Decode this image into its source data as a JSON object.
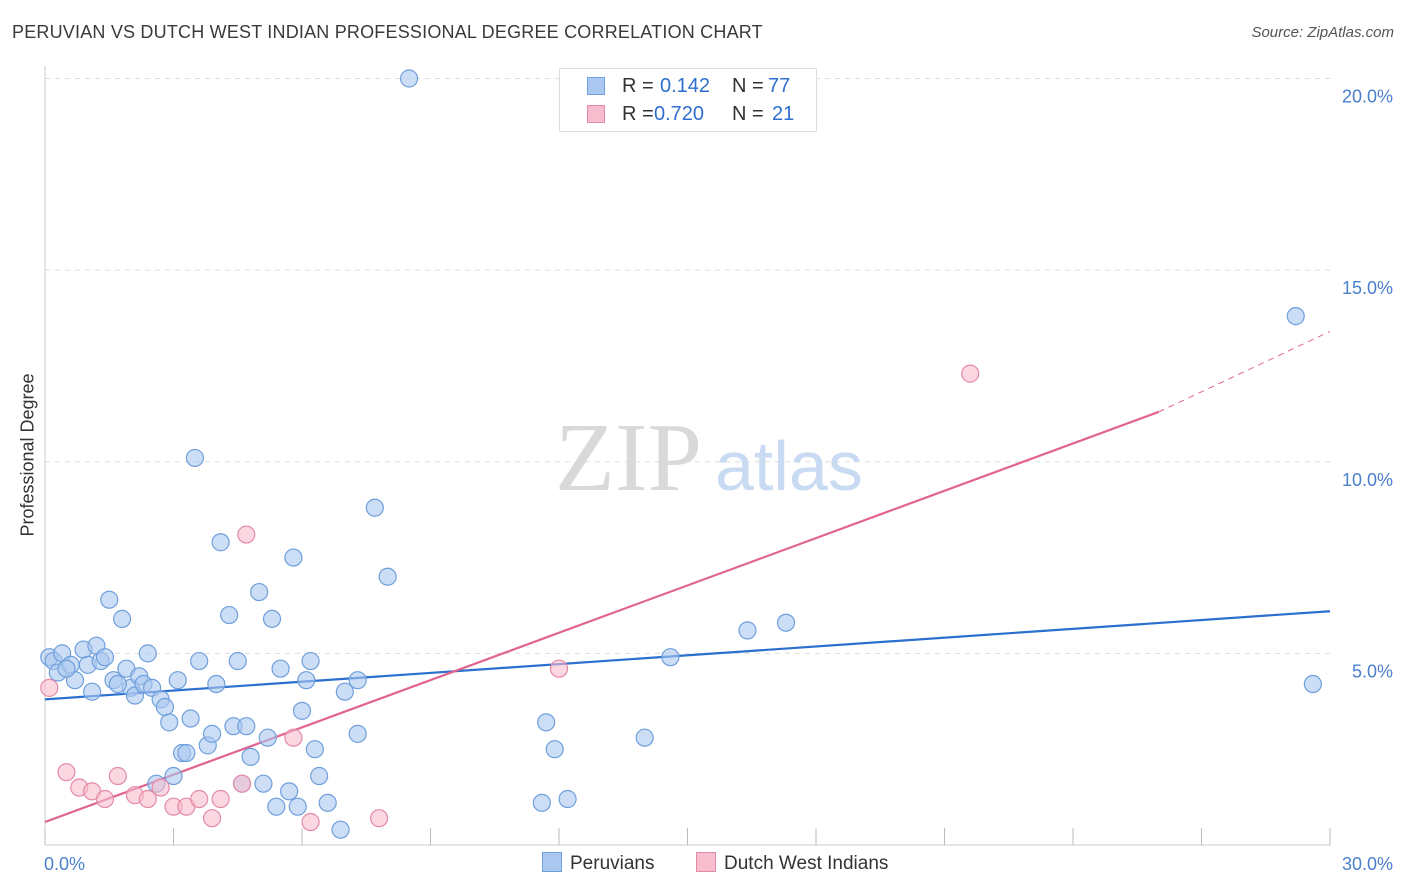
{
  "title": "PERUVIAN VS DUTCH WEST INDIAN PROFESSIONAL DEGREE CORRELATION CHART",
  "source": "Source: ZipAtlas.com",
  "watermark": {
    "zip": "ZIP",
    "atlas": "atlas"
  },
  "legend": {
    "r_label": "R =",
    "n_label": "N =",
    "rows": [
      {
        "r": "0.142",
        "n": "77"
      },
      {
        "r": "0.720",
        "n": "21"
      }
    ]
  },
  "colors": {
    "peruvians_fill": "#aac8f0",
    "peruvians_stroke": "#6f9fdc",
    "peruvians_line": "#2b6fcf",
    "dutch_fill": "#f7bccd",
    "dutch_stroke": "#e58aa6",
    "dutch_line": "#e0648f",
    "tick_text": "#4a7fcc",
    "grid": "#dddddd"
  },
  "chart_data": {
    "type": "scatter",
    "title": "PERUVIAN VS DUTCH WEST INDIAN PROFESSIONAL DEGREE CORRELATION CHART",
    "xlabel": "",
    "ylabel": "Professional Degree",
    "xlim": [
      0,
      30
    ],
    "ylim": [
      0,
      20
    ],
    "x_tick_labels": [
      "0.0%",
      "30.0%"
    ],
    "y_tick_labels": [
      "5.0%",
      "10.0%",
      "15.0%",
      "20.0%"
    ],
    "y_ticks": [
      5,
      10,
      15,
      20
    ],
    "grid": true,
    "legend_position": "top-center",
    "series": [
      {
        "name": "Peruvians",
        "r": 0.142,
        "n": 77,
        "trend": {
          "x0": 0,
          "y0": 3.8,
          "x1": 30,
          "y1": 6.1
        },
        "points": [
          [
            0.1,
            4.9
          ],
          [
            0.2,
            4.8
          ],
          [
            0.3,
            4.5
          ],
          [
            0.4,
            5.0
          ],
          [
            0.6,
            4.7
          ],
          [
            0.7,
            4.3
          ],
          [
            0.9,
            5.1
          ],
          [
            1.0,
            4.7
          ],
          [
            1.1,
            4.0
          ],
          [
            1.2,
            5.2
          ],
          [
            1.3,
            4.8
          ],
          [
            1.4,
            4.9
          ],
          [
            1.5,
            6.4
          ],
          [
            1.6,
            4.3
          ],
          [
            1.8,
            5.9
          ],
          [
            1.9,
            4.6
          ],
          [
            2.0,
            4.1
          ],
          [
            2.1,
            3.9
          ],
          [
            2.2,
            4.4
          ],
          [
            2.3,
            4.2
          ],
          [
            2.4,
            5.0
          ],
          [
            2.5,
            4.1
          ],
          [
            2.6,
            1.6
          ],
          [
            2.7,
            3.8
          ],
          [
            2.8,
            3.6
          ],
          [
            2.9,
            3.2
          ],
          [
            3.0,
            1.8
          ],
          [
            3.1,
            4.3
          ],
          [
            3.2,
            2.4
          ],
          [
            3.3,
            2.4
          ],
          [
            3.4,
            3.3
          ],
          [
            3.5,
            10.1
          ],
          [
            3.6,
            4.8
          ],
          [
            3.8,
            2.6
          ],
          [
            3.9,
            2.9
          ],
          [
            4.0,
            4.2
          ],
          [
            4.1,
            7.9
          ],
          [
            4.3,
            6.0
          ],
          [
            4.4,
            3.1
          ],
          [
            4.5,
            4.8
          ],
          [
            4.6,
            1.6
          ],
          [
            4.7,
            3.1
          ],
          [
            4.8,
            2.3
          ],
          [
            5.0,
            6.6
          ],
          [
            5.1,
            1.6
          ],
          [
            5.2,
            2.8
          ],
          [
            5.3,
            5.9
          ],
          [
            5.4,
            1.0
          ],
          [
            5.5,
            4.6
          ],
          [
            5.7,
            1.4
          ],
          [
            5.8,
            7.5
          ],
          [
            5.9,
            1.0
          ],
          [
            6.0,
            3.5
          ],
          [
            6.1,
            4.3
          ],
          [
            6.2,
            4.8
          ],
          [
            6.3,
            2.5
          ],
          [
            6.4,
            1.8
          ],
          [
            6.6,
            1.1
          ],
          [
            6.9,
            0.4
          ],
          [
            7.0,
            4.0
          ],
          [
            7.3,
            2.9
          ],
          [
            7.3,
            4.3
          ],
          [
            7.7,
            8.8
          ],
          [
            8.0,
            7.0
          ],
          [
            11.7,
            3.2
          ],
          [
            11.9,
            2.5
          ],
          [
            11.6,
            1.1
          ],
          [
            12.2,
            1.2
          ],
          [
            14.0,
            2.8
          ],
          [
            14.6,
            4.9
          ],
          [
            16.4,
            5.6
          ],
          [
            17.3,
            5.8
          ],
          [
            8.5,
            20.0
          ],
          [
            29.2,
            13.8
          ],
          [
            29.6,
            4.2
          ],
          [
            0.5,
            4.6
          ],
          [
            1.7,
            4.2
          ]
        ]
      },
      {
        "name": "Dutch West Indians",
        "r": 0.72,
        "n": 21,
        "trend": {
          "x0": 0,
          "y0": 0.6,
          "x1": 26.0,
          "y1": 11.3,
          "dash_to_x": 30,
          "dash_to_y": 13.4
        },
        "points": [
          [
            0.1,
            4.1
          ],
          [
            0.5,
            1.9
          ],
          [
            0.8,
            1.5
          ],
          [
            1.1,
            1.4
          ],
          [
            1.4,
            1.2
          ],
          [
            1.7,
            1.8
          ],
          [
            2.1,
            1.3
          ],
          [
            2.4,
            1.2
          ],
          [
            2.7,
            1.5
          ],
          [
            3.0,
            1.0
          ],
          [
            3.3,
            1.0
          ],
          [
            3.6,
            1.2
          ],
          [
            3.9,
            0.7
          ],
          [
            4.1,
            1.2
          ],
          [
            4.6,
            1.6
          ],
          [
            5.8,
            2.8
          ],
          [
            6.2,
            0.6
          ],
          [
            7.8,
            0.7
          ],
          [
            12.0,
            4.6
          ],
          [
            4.7,
            8.1
          ],
          [
            21.6,
            12.3
          ]
        ]
      }
    ]
  },
  "bottom_legend": [
    {
      "label": "Peruvians"
    },
    {
      "label": "Dutch West Indians"
    }
  ]
}
